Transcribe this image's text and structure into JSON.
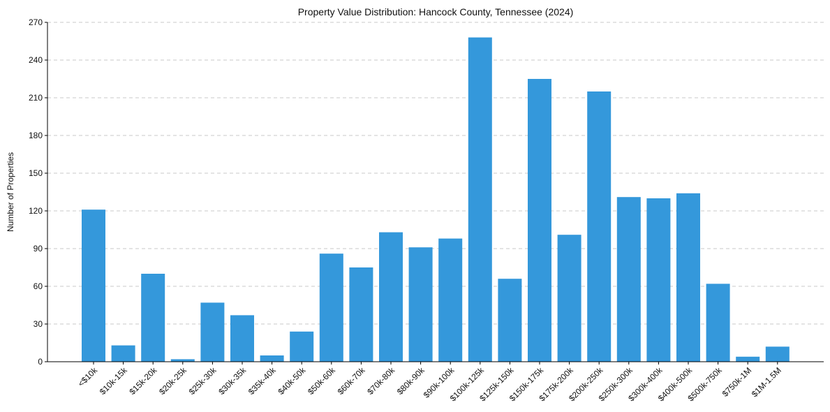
{
  "chart_data": {
    "type": "bar",
    "title": "Property Value Distribution: Hancock County, Tennessee (2024)",
    "xlabel": "",
    "ylabel": "Number of Properties",
    "ylim": [
      0,
      270
    ],
    "yticks": [
      0,
      30,
      60,
      90,
      120,
      150,
      180,
      210,
      240,
      270
    ],
    "grid": "y-dashed",
    "bar_color": "#3498db",
    "categories": [
      "<$10k",
      "$10k-15k",
      "$15k-20k",
      "$20k-25k",
      "$25k-30k",
      "$30k-35k",
      "$35k-40k",
      "$40k-50k",
      "$50k-60k",
      "$60k-70k",
      "$70k-80k",
      "$80k-90k",
      "$90k-100k",
      "$100k-125k",
      "$125k-150k",
      "$150k-175k",
      "$175k-200k",
      "$200k-250k",
      "$250k-300k",
      "$300k-400k",
      "$400k-500k",
      "$500k-750k",
      "$750k-1M",
      "$1M-1.5M"
    ],
    "values": [
      121,
      13,
      70,
      2,
      47,
      37,
      5,
      24,
      86,
      75,
      103,
      91,
      98,
      258,
      66,
      225,
      101,
      215,
      131,
      130,
      134,
      62,
      4,
      12
    ]
  }
}
